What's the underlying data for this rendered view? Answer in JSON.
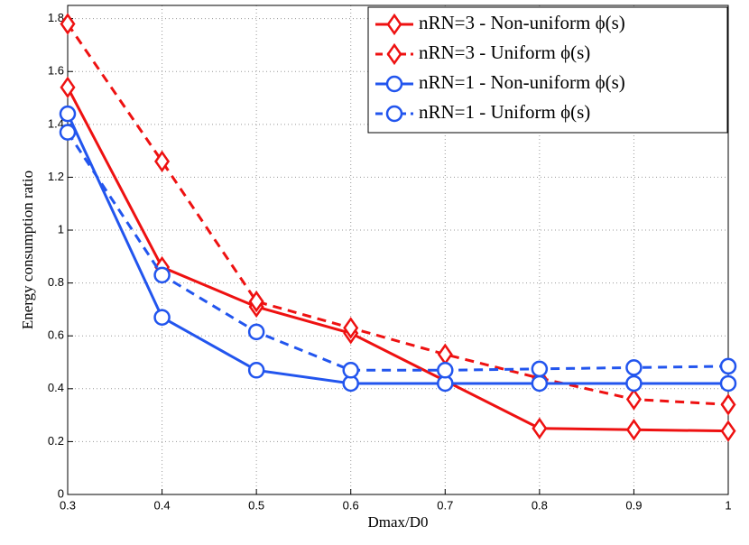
{
  "chart_data": {
    "type": "line",
    "xlabel": "Dmax/D0",
    "ylabel": "Energy consumption ratio",
    "x": [
      0.3,
      0.4,
      0.5,
      0.6,
      0.7,
      0.8,
      0.9,
      1
    ],
    "series": [
      {
        "name": "nRN=3 - Non-uniform ϕ(s)",
        "color": "#ee1111",
        "dash": false,
        "marker": "diamond",
        "values": [
          1.54,
          0.86,
          0.71,
          0.61,
          0.43,
          0.25,
          0.245,
          0.24
        ]
      },
      {
        "name": "nRN=3 - Uniform ϕ(s)",
        "color": "#ee1111",
        "dash": true,
        "marker": "diamond",
        "values": [
          1.78,
          1.26,
          0.73,
          0.63,
          0.53,
          0.44,
          0.36,
          0.34
        ]
      },
      {
        "name": "nRN=1 - Non-uniform ϕ(s)",
        "color": "#2255ee",
        "dash": false,
        "marker": "circle",
        "values": [
          1.44,
          0.67,
          0.47,
          0.42,
          0.42,
          0.42,
          0.42,
          0.42
        ]
      },
      {
        "name": "nRN=1 - Uniform ϕ(s)",
        "color": "#2255ee",
        "dash": true,
        "marker": "circle",
        "values": [
          1.37,
          0.83,
          0.615,
          0.47,
          0.47,
          0.475,
          0.48,
          0.485
        ]
      }
    ],
    "xlim": [
      0.3,
      1
    ],
    "xticks": [
      0.3,
      0.4,
      0.5,
      0.6,
      0.7,
      0.8,
      0.9,
      1
    ],
    "ylim": [
      0,
      1.85
    ],
    "yticks": [
      0,
      0.2,
      0.4,
      0.6,
      0.8,
      1,
      1.2,
      1.4,
      1.6,
      1.8
    ],
    "grid": true,
    "legend": "upper right"
  }
}
